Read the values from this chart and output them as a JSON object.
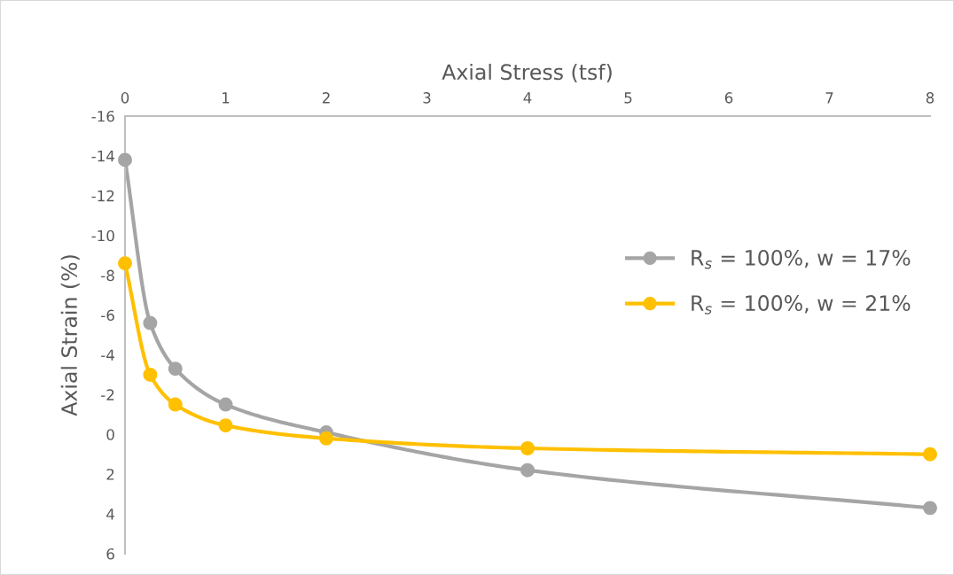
{
  "chart_data": {
    "type": "line",
    "xlabel": "Axial Stress (tsf)",
    "ylabel": "Axial Strain (%)",
    "x": [
      0,
      0.25,
      0.5,
      1,
      2,
      4,
      8
    ],
    "series": [
      {
        "name": "R$_{s}$ = 100%, w = 17%",
        "color": "#a5a5a5",
        "values": [
          -13.8,
          -5.6,
          -3.3,
          -1.5,
          -0.1,
          1.8,
          3.7
        ]
      },
      {
        "name": "R$_{s}$ = 100%, w = 21%",
        "color": "#ffc000",
        "values": [
          -8.6,
          -3.0,
          -1.5,
          -0.45,
          0.2,
          0.7,
          1.0
        ]
      }
    ],
    "xlim": [
      0,
      8
    ],
    "xticks": [
      0,
      1,
      2,
      3,
      4,
      5,
      6,
      7,
      8
    ],
    "ylim": [
      6,
      -16
    ],
    "yticks": [
      -16,
      -14,
      -12,
      -10,
      -8,
      -6,
      -4,
      -2,
      0,
      2,
      4,
      6
    ],
    "grid": false,
    "legend": "right",
    "marker": "circle",
    "line_style": "solid"
  }
}
